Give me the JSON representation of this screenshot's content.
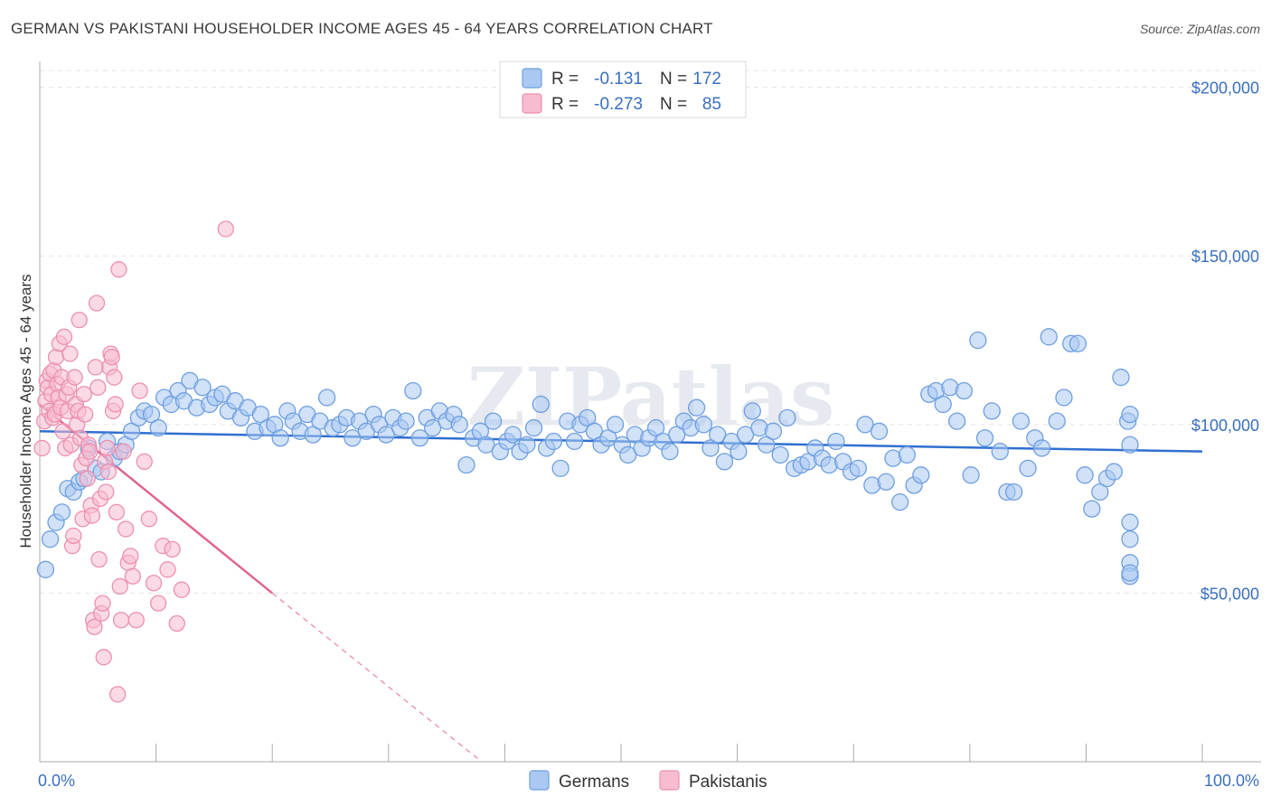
{
  "title": "GERMAN VS PAKISTANI HOUSEHOLDER INCOME AGES 45 - 64 YEARS CORRELATION CHART",
  "source": "Source: ZipAtlas.com",
  "watermark": "ZIPatlas",
  "legend": {
    "rows": [
      {
        "r_label": "R =",
        "r_value": "-0.131",
        "n_label": "N =",
        "n_value": "172",
        "color": "#a9c8f2",
        "stroke": "#6e9fe0"
      },
      {
        "r_label": "R =",
        "r_value": "-0.273",
        "n_label": "N =",
        "n_value": "85",
        "color": "#f7bcd0",
        "stroke": "#ec8fb0"
      }
    ]
  },
  "bottom_legend": [
    {
      "label": "Germans",
      "color": "#a9c8f2",
      "stroke": "#6e9fe0"
    },
    {
      "label": "Pakistanis",
      "color": "#f7bcd0",
      "stroke": "#ec8fb0"
    }
  ],
  "chart_data": {
    "type": "scatter",
    "ylabel": "Householder Income Ages 45 - 64 years",
    "xlabel": "",
    "x_tick_labels": [
      "0.0%",
      "100.0%"
    ],
    "y_tick_labels": [
      "$50,000",
      "$100,000",
      "$150,000",
      "$200,000"
    ],
    "y_ticks": [
      50000,
      100000,
      150000,
      200000
    ],
    "xlim": [
      0,
      100
    ],
    "ylim": [
      0,
      205000
    ],
    "grid": true,
    "series": [
      {
        "name": "Germans",
        "color": "#6e9fe0",
        "fill": "#a9c8f2",
        "trend": {
          "x0": 0,
          "y0": 98000,
          "x1": 100,
          "y1": 92000
        },
        "points": [
          [
            0.5,
            57000
          ],
          [
            0.9,
            66000
          ],
          [
            1.4,
            71000
          ],
          [
            1.9,
            74000
          ],
          [
            2.4,
            81000
          ],
          [
            2.9,
            80000
          ],
          [
            3.4,
            83000
          ],
          [
            3.8,
            84000
          ],
          [
            4.2,
            93000
          ],
          [
            4.8,
            87000
          ],
          [
            5.3,
            86000
          ],
          [
            5.8,
            95000
          ],
          [
            6.4,
            90000
          ],
          [
            6.9,
            92000
          ],
          [
            7.4,
            94000
          ],
          [
            7.9,
            98000
          ],
          [
            8.5,
            102000
          ],
          [
            9.0,
            104000
          ],
          [
            9.6,
            103000
          ],
          [
            10.2,
            99000
          ],
          [
            10.7,
            108000
          ],
          [
            11.3,
            106000
          ],
          [
            11.9,
            110000
          ],
          [
            12.4,
            107000
          ],
          [
            12.9,
            113000
          ],
          [
            13.5,
            105000
          ],
          [
            14.0,
            111000
          ],
          [
            14.6,
            106000
          ],
          [
            15.1,
            108000
          ],
          [
            15.7,
            109000
          ],
          [
            16.2,
            104000
          ],
          [
            16.8,
            107000
          ],
          [
            17.3,
            102000
          ],
          [
            17.9,
            105000
          ],
          [
            18.5,
            98000
          ],
          [
            19.0,
            103000
          ],
          [
            19.6,
            99000
          ],
          [
            20.2,
            100000
          ],
          [
            20.7,
            96000
          ],
          [
            21.3,
            104000
          ],
          [
            21.8,
            101000
          ],
          [
            22.4,
            98000
          ],
          [
            23.0,
            103000
          ],
          [
            23.5,
            97000
          ],
          [
            24.1,
            101000
          ],
          [
            24.7,
            108000
          ],
          [
            25.2,
            99000
          ],
          [
            25.8,
            100000
          ],
          [
            26.4,
            102000
          ],
          [
            26.9,
            96000
          ],
          [
            27.5,
            101000
          ],
          [
            28.1,
            98000
          ],
          [
            28.7,
            103000
          ],
          [
            29.2,
            100000
          ],
          [
            29.8,
            97000
          ],
          [
            30.4,
            102000
          ],
          [
            31.0,
            99000
          ],
          [
            31.5,
            101000
          ],
          [
            32.1,
            110000
          ],
          [
            32.7,
            96000
          ],
          [
            33.3,
            102000
          ],
          [
            33.8,
            99000
          ],
          [
            34.4,
            104000
          ],
          [
            35.0,
            101000
          ],
          [
            35.6,
            103000
          ],
          [
            36.1,
            100000
          ],
          [
            36.7,
            88000
          ],
          [
            37.3,
            96000
          ],
          [
            37.9,
            98000
          ],
          [
            38.4,
            94000
          ],
          [
            39.0,
            101000
          ],
          [
            39.6,
            92000
          ],
          [
            40.2,
            95000
          ],
          [
            40.7,
            97000
          ],
          [
            41.3,
            92000
          ],
          [
            41.9,
            94000
          ],
          [
            42.5,
            99000
          ],
          [
            43.1,
            106000
          ],
          [
            43.6,
            93000
          ],
          [
            44.2,
            95000
          ],
          [
            44.8,
            87000
          ],
          [
            45.4,
            101000
          ],
          [
            46.0,
            95000
          ],
          [
            46.5,
            100000
          ],
          [
            47.1,
            102000
          ],
          [
            47.7,
            98000
          ],
          [
            48.3,
            94000
          ],
          [
            48.9,
            96000
          ],
          [
            49.5,
            100000
          ],
          [
            50.1,
            94000
          ],
          [
            50.6,
            91000
          ],
          [
            51.2,
            97000
          ],
          [
            51.8,
            93000
          ],
          [
            52.4,
            96000
          ],
          [
            53.0,
            99000
          ],
          [
            53.6,
            95000
          ],
          [
            54.2,
            92000
          ],
          [
            54.8,
            97000
          ],
          [
            55.4,
            101000
          ],
          [
            56.0,
            99000
          ],
          [
            56.5,
            105000
          ],
          [
            57.1,
            100000
          ],
          [
            57.7,
            93000
          ],
          [
            58.3,
            97000
          ],
          [
            58.9,
            89000
          ],
          [
            59.5,
            95000
          ],
          [
            60.1,
            92000
          ],
          [
            60.7,
            97000
          ],
          [
            61.3,
            104000
          ],
          [
            61.9,
            99000
          ],
          [
            62.5,
            94000
          ],
          [
            63.1,
            98000
          ],
          [
            63.7,
            91000
          ],
          [
            64.3,
            102000
          ],
          [
            64.9,
            87000
          ],
          [
            65.5,
            88000
          ],
          [
            66.1,
            89000
          ],
          [
            66.7,
            93000
          ],
          [
            67.3,
            90000
          ],
          [
            67.9,
            88000
          ],
          [
            68.5,
            95000
          ],
          [
            69.1,
            89000
          ],
          [
            69.8,
            86000
          ],
          [
            70.4,
            87000
          ],
          [
            71.0,
            100000
          ],
          [
            71.6,
            82000
          ],
          [
            72.2,
            98000
          ],
          [
            72.8,
            83000
          ],
          [
            73.4,
            90000
          ],
          [
            74.0,
            77000
          ],
          [
            74.6,
            91000
          ],
          [
            75.2,
            82000
          ],
          [
            75.8,
            85000
          ],
          [
            76.5,
            109000
          ],
          [
            77.1,
            110000
          ],
          [
            77.7,
            106000
          ],
          [
            78.3,
            111000
          ],
          [
            78.9,
            101000
          ],
          [
            79.5,
            110000
          ],
          [
            80.1,
            85000
          ],
          [
            80.7,
            125000
          ],
          [
            81.3,
            96000
          ],
          [
            81.9,
            104000
          ],
          [
            82.6,
            92000
          ],
          [
            83.2,
            80000
          ],
          [
            83.8,
            80000
          ],
          [
            84.4,
            101000
          ],
          [
            85.0,
            87000
          ],
          [
            85.6,
            96000
          ],
          [
            86.2,
            93000
          ],
          [
            86.8,
            126000
          ],
          [
            87.5,
            101000
          ],
          [
            88.1,
            108000
          ],
          [
            88.7,
            124000
          ],
          [
            89.3,
            124000
          ],
          [
            89.9,
            85000
          ],
          [
            90.5,
            75000
          ],
          [
            91.2,
            80000
          ],
          [
            91.8,
            84000
          ],
          [
            92.4,
            86000
          ],
          [
            93.0,
            114000
          ],
          [
            93.6,
            101000
          ],
          [
            94.2,
            71000
          ],
          [
            94.9,
            66000
          ],
          [
            96.1,
            103000
          ],
          [
            97.3,
            94000
          ],
          [
            98.5,
            59000
          ],
          [
            99.7,
            55000
          ],
          [
            101.0,
            56000
          ]
        ]
      },
      {
        "name": "Pakistanis",
        "color": "#ec8fb0",
        "fill": "#f7bcd0",
        "trend": {
          "x0": 0,
          "y0": 106000,
          "x1": 20,
          "y1": 50000
        },
        "trend_extended": {
          "x0": 20,
          "y0": 50000,
          "x1": 38,
          "y1": 0
        },
        "points": [
          [
            0.2,
            93000
          ],
          [
            0.4,
            101000
          ],
          [
            0.5,
            107000
          ],
          [
            0.6,
            113000
          ],
          [
            0.7,
            111000
          ],
          [
            0.8,
            104000
          ],
          [
            0.9,
            115000
          ],
          [
            1.0,
            109000
          ],
          [
            1.1,
            102000
          ],
          [
            1.2,
            116000
          ],
          [
            1.3,
            103000
          ],
          [
            1.4,
            120000
          ],
          [
            1.5,
            112000
          ],
          [
            1.6,
            108000
          ],
          [
            1.7,
            124000
          ],
          [
            1.8,
            105000
          ],
          [
            1.9,
            114000
          ],
          [
            2.0,
            98000
          ],
          [
            2.1,
            126000
          ],
          [
            2.2,
            93000
          ],
          [
            2.3,
            109000
          ],
          [
            2.4,
            104000
          ],
          [
            2.5,
            111000
          ],
          [
            2.6,
            121000
          ],
          [
            2.7,
            94000
          ],
          [
            2.8,
            64000
          ],
          [
            2.9,
            67000
          ],
          [
            3.0,
            114000
          ],
          [
            3.1,
            106000
          ],
          [
            3.2,
            100000
          ],
          [
            3.3,
            104000
          ],
          [
            3.4,
            131000
          ],
          [
            3.5,
            96000
          ],
          [
            3.6,
            88000
          ],
          [
            3.7,
            72000
          ],
          [
            3.8,
            109000
          ],
          [
            3.9,
            103000
          ],
          [
            4.0,
            90000
          ],
          [
            4.1,
            84000
          ],
          [
            4.2,
            94000
          ],
          [
            4.3,
            92000
          ],
          [
            4.4,
            76000
          ],
          [
            4.5,
            73000
          ],
          [
            4.6,
            42000
          ],
          [
            4.7,
            40000
          ],
          [
            4.8,
            117000
          ],
          [
            4.9,
            136000
          ],
          [
            5.0,
            111000
          ],
          [
            5.1,
            60000
          ],
          [
            5.2,
            78000
          ],
          [
            5.3,
            44000
          ],
          [
            5.4,
            47000
          ],
          [
            5.5,
            31000
          ],
          [
            5.6,
            89000
          ],
          [
            5.7,
            80000
          ],
          [
            5.8,
            93000
          ],
          [
            5.9,
            86000
          ],
          [
            6.0,
            117000
          ],
          [
            6.1,
            121000
          ],
          [
            6.2,
            120000
          ],
          [
            6.3,
            104000
          ],
          [
            6.4,
            114000
          ],
          [
            6.5,
            106000
          ],
          [
            6.6,
            74000
          ],
          [
            6.7,
            20000
          ],
          [
            6.8,
            146000
          ],
          [
            6.9,
            52000
          ],
          [
            7.0,
            42000
          ],
          [
            7.2,
            92000
          ],
          [
            7.4,
            69000
          ],
          [
            7.6,
            59000
          ],
          [
            7.8,
            61000
          ],
          [
            8.0,
            55000
          ],
          [
            8.3,
            42000
          ],
          [
            8.6,
            110000
          ],
          [
            9.0,
            89000
          ],
          [
            9.4,
            72000
          ],
          [
            9.8,
            53000
          ],
          [
            10.2,
            47000
          ],
          [
            10.6,
            64000
          ],
          [
            11.0,
            57000
          ],
          [
            11.4,
            63000
          ],
          [
            11.8,
            41000
          ],
          [
            12.2,
            51000
          ],
          [
            16.0,
            158000
          ]
        ]
      }
    ]
  }
}
